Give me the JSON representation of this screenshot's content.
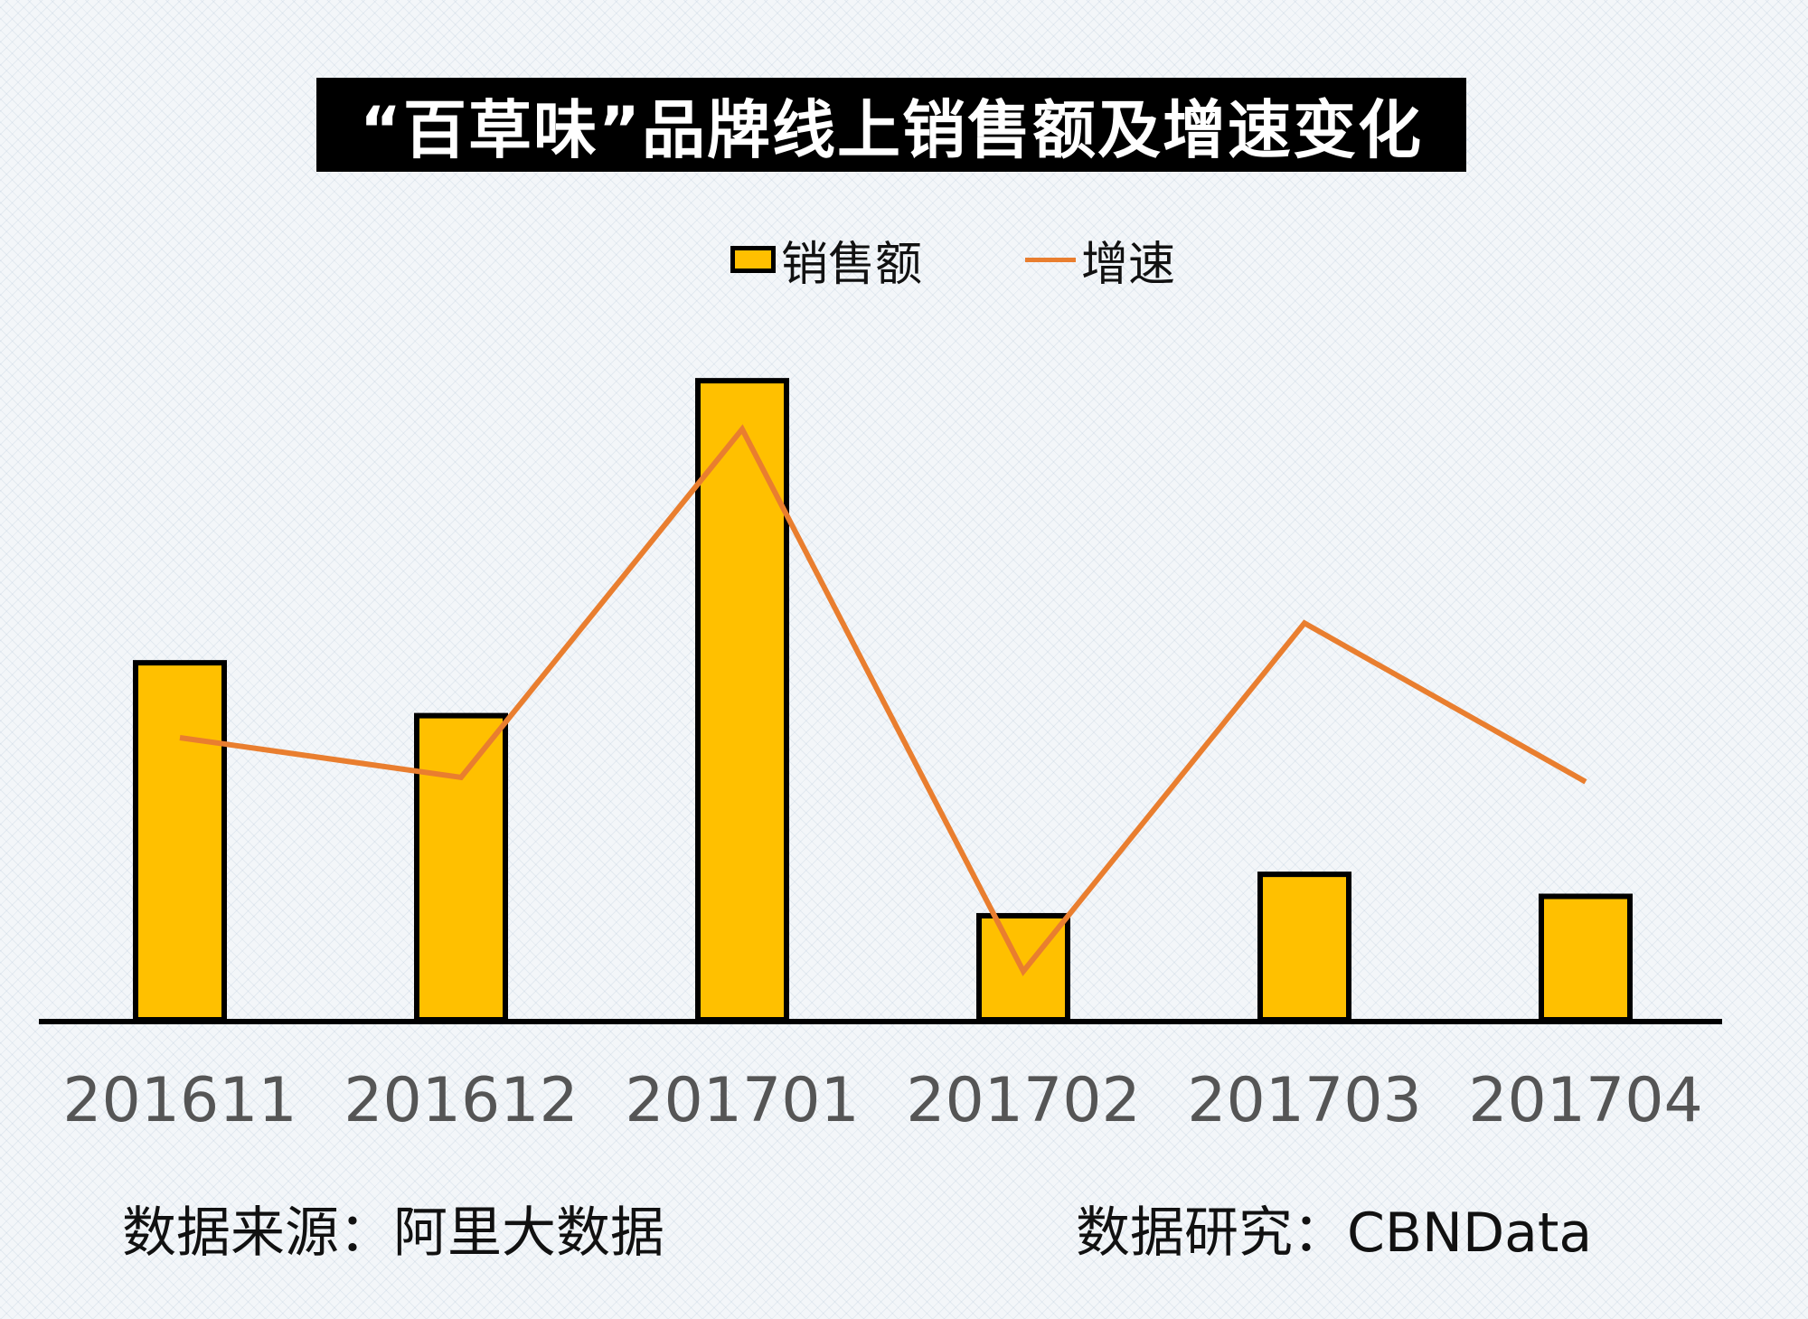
{
  "chart_data": {
    "type": "bar",
    "title": "“百草味”品牌线上销售额及增速变化",
    "categories": [
      "201611",
      "201612",
      "201701",
      "201702",
      "201703",
      "201704"
    ],
    "series": [
      {
        "name": "销售额",
        "type": "bar",
        "values": [
          40.5,
          34.5,
          72.5,
          11.8,
          16.5,
          14.0
        ],
        "color": "#ffc000"
      },
      {
        "name": "增速",
        "type": "line",
        "values": [
          32,
          27.5,
          67,
          5.5,
          45,
          27
        ],
        "color": "#e97e2f"
      }
    ],
    "ylim": [
      0,
      80
    ],
    "xlabel": "",
    "ylabel": ""
  },
  "footer": {
    "source": "数据来源：阿里大数据",
    "research": "数据研究：CBNData"
  }
}
